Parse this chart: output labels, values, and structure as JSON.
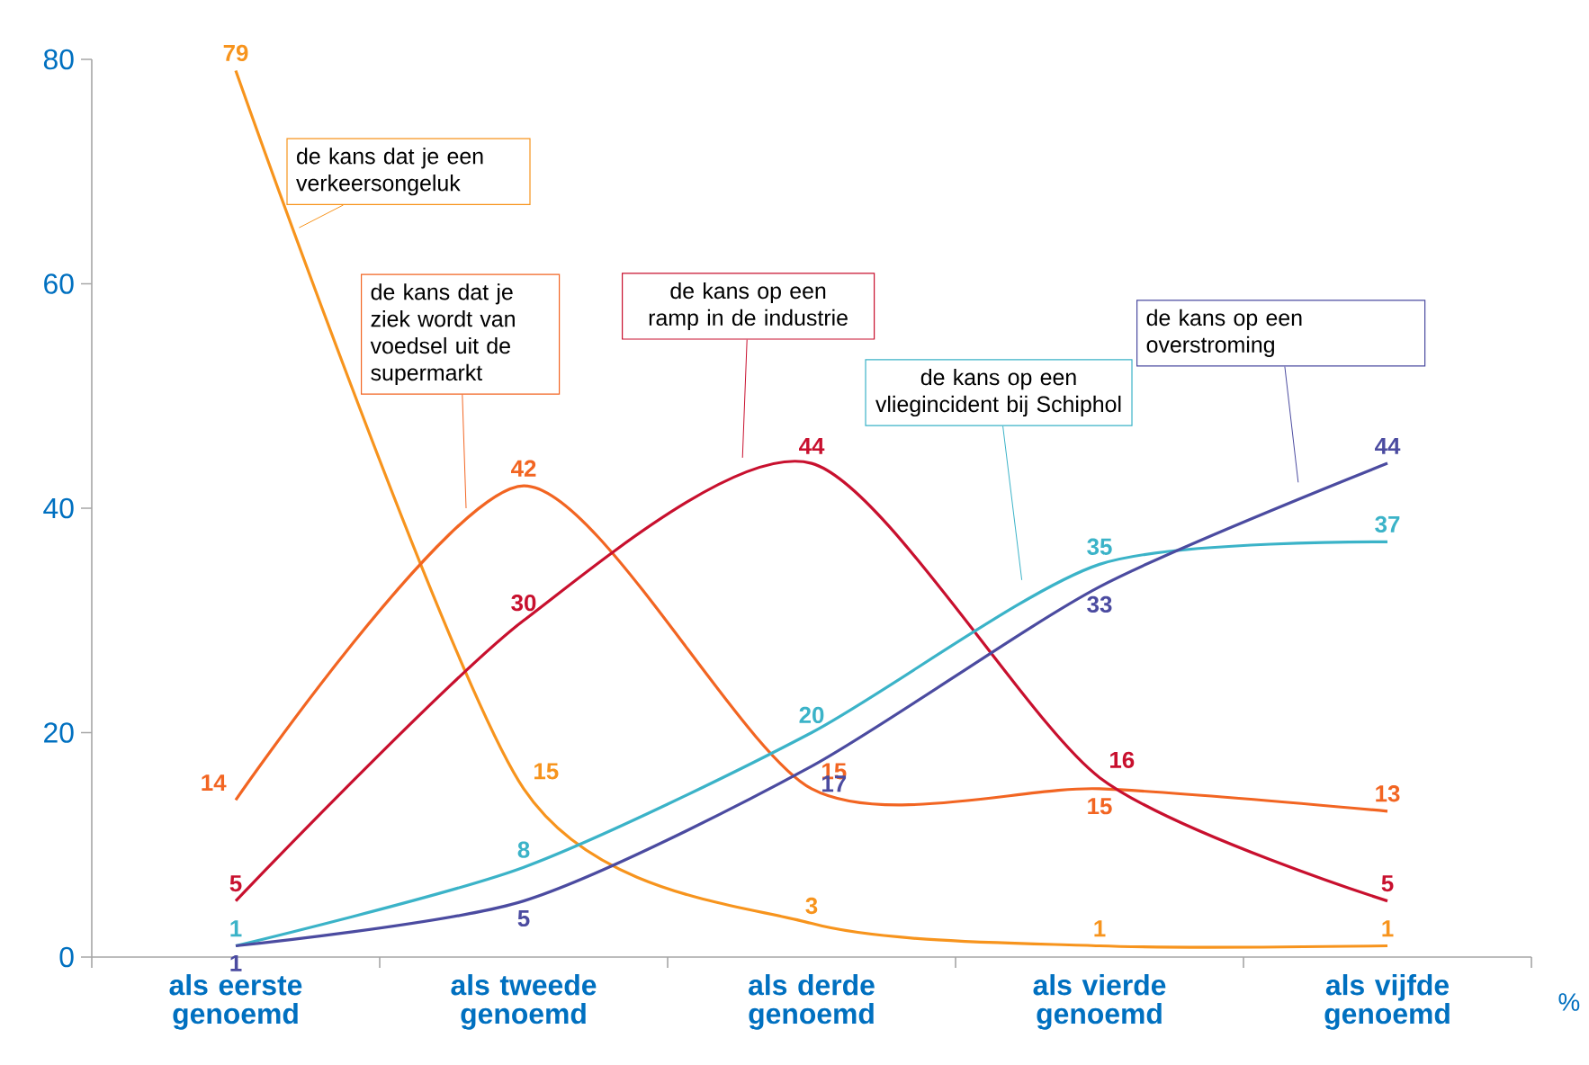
{
  "chart_data": {
    "type": "line",
    "categories": [
      "als eerste genoemd",
      "als tweede genoemd",
      "als derde genoemd",
      "als vierde genoemd",
      "als vijfde genoemd"
    ],
    "series": [
      {
        "name": "de kans dat je een verkeersongeluk",
        "color": "#f7941d",
        "values": [
          79,
          15,
          3,
          1,
          1
        ]
      },
      {
        "name": "de kans dat je ziek wordt van voedsel uit de supermarkt",
        "color": "#f26522",
        "values": [
          14,
          42,
          15,
          15,
          13
        ]
      },
      {
        "name": "de kans op een ramp in de industrie",
        "color": "#c8102e",
        "values": [
          5,
          30,
          44,
          16,
          5
        ]
      },
      {
        "name": "de kans op een vliegincident bij Schiphol",
        "color": "#3bb3c8",
        "values": [
          1,
          8,
          20,
          35,
          37
        ]
      },
      {
        "name": "de kans op een overstroming",
        "color": "#4b4ba0",
        "values": [
          1,
          5,
          17,
          33,
          44
        ]
      }
    ],
    "ylim": [
      0,
      80
    ],
    "yticks": [
      0,
      20,
      40,
      60,
      80
    ],
    "data_labels": true,
    "grid": false,
    "legend": false,
    "marker": "none",
    "line_style": "solid",
    "annotations": [
      "%"
    ]
  }
}
